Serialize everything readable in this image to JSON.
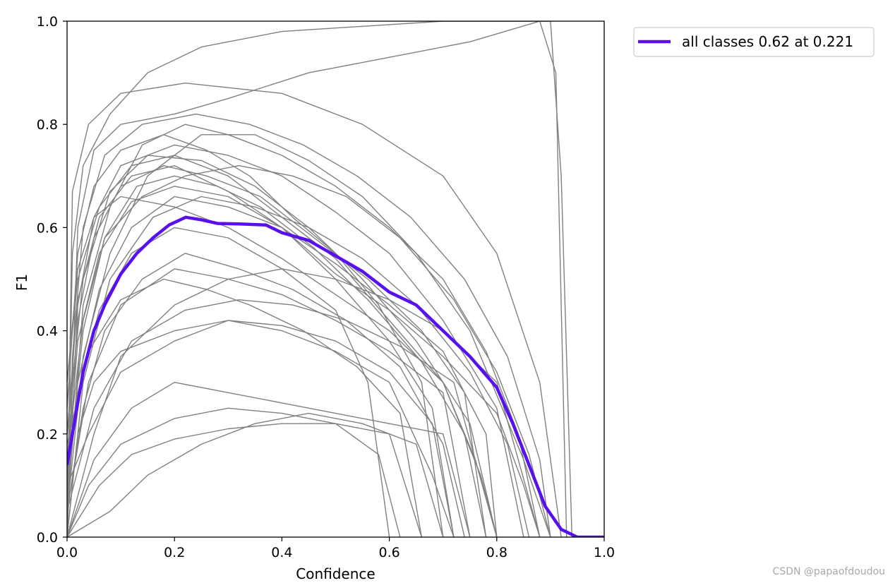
{
  "chart_data": {
    "type": "line",
    "title": "",
    "xlabel": "Confidence",
    "ylabel": "F1",
    "xlim": [
      0,
      1
    ],
    "ylim": [
      0,
      1
    ],
    "xticks": [
      "0.0",
      "0.2",
      "0.4",
      "0.6",
      "0.8",
      "1.0"
    ],
    "yticks": [
      "0.0",
      "0.2",
      "0.4",
      "0.6",
      "0.8",
      "1.0"
    ],
    "grid": false,
    "legend_position": "outside-top-right",
    "class_line_color": "#808080",
    "summary_color": "#5810ee",
    "series": [
      {
        "name": "all classes 0.62 at 0.221",
        "x": [
          0.0,
          0.01,
          0.02,
          0.03,
          0.05,
          0.07,
          0.1,
          0.13,
          0.16,
          0.19,
          0.221,
          0.25,
          0.28,
          0.32,
          0.37,
          0.4,
          0.45,
          0.5,
          0.55,
          0.6,
          0.65,
          0.7,
          0.75,
          0.8,
          0.83,
          0.86,
          0.89,
          0.92,
          0.95,
          0.97,
          1.0
        ],
        "y": [
          0.14,
          0.2,
          0.26,
          0.32,
          0.4,
          0.45,
          0.51,
          0.55,
          0.58,
          0.605,
          0.62,
          0.615,
          0.608,
          0.607,
          0.605,
          0.59,
          0.575,
          0.545,
          0.515,
          0.475,
          0.45,
          0.4,
          0.35,
          0.29,
          0.22,
          0.14,
          0.06,
          0.015,
          0.0,
          0.0,
          0.0
        ]
      }
    ],
    "class_curves": [
      [
        [
          0.0,
          0.0
        ],
        [
          0.02,
          0.45
        ],
        [
          0.05,
          0.62
        ],
        [
          0.1,
          0.72
        ],
        [
          0.2,
          0.76
        ],
        [
          0.3,
          0.74
        ],
        [
          0.4,
          0.7
        ],
        [
          0.5,
          0.63
        ],
        [
          0.6,
          0.55
        ],
        [
          0.7,
          0.42
        ],
        [
          0.8,
          0.25
        ],
        [
          0.85,
          0.0
        ]
      ],
      [
        [
          0.0,
          0.05
        ],
        [
          0.03,
          0.35
        ],
        [
          0.08,
          0.55
        ],
        [
          0.15,
          0.7
        ],
        [
          0.25,
          0.78
        ],
        [
          0.35,
          0.78
        ],
        [
          0.45,
          0.73
        ],
        [
          0.55,
          0.66
        ],
        [
          0.65,
          0.55
        ],
        [
          0.75,
          0.4
        ],
        [
          0.85,
          0.15
        ],
        [
          0.9,
          0.0
        ]
      ],
      [
        [
          0.0,
          0.1
        ],
        [
          0.02,
          0.3
        ],
        [
          0.06,
          0.48
        ],
        [
          0.12,
          0.6
        ],
        [
          0.2,
          0.66
        ],
        [
          0.3,
          0.64
        ],
        [
          0.4,
          0.6
        ],
        [
          0.5,
          0.53
        ],
        [
          0.6,
          0.45
        ],
        [
          0.7,
          0.36
        ],
        [
          0.78,
          0.2
        ],
        [
          0.8,
          0.0
        ]
      ],
      [
        [
          0.0,
          0.0
        ],
        [
          0.01,
          0.67
        ],
        [
          0.04,
          0.8
        ],
        [
          0.1,
          0.86
        ],
        [
          0.22,
          0.88
        ],
        [
          0.4,
          0.86
        ],
        [
          0.55,
          0.8
        ],
        [
          0.7,
          0.7
        ],
        [
          0.8,
          0.55
        ],
        [
          0.88,
          0.3
        ],
        [
          0.92,
          0.0
        ]
      ],
      [
        [
          0.0,
          0.2
        ],
        [
          0.03,
          0.5
        ],
        [
          0.08,
          0.67
        ],
        [
          0.15,
          0.74
        ],
        [
          0.25,
          0.73
        ],
        [
          0.35,
          0.68
        ],
        [
          0.45,
          0.6
        ],
        [
          0.55,
          0.5
        ],
        [
          0.65,
          0.38
        ],
        [
          0.75,
          0.22
        ],
        [
          0.8,
          0.0
        ]
      ],
      [
        [
          0.0,
          0.05
        ],
        [
          0.04,
          0.3
        ],
        [
          0.1,
          0.45
        ],
        [
          0.2,
          0.52
        ],
        [
          0.3,
          0.5
        ],
        [
          0.4,
          0.47
        ],
        [
          0.5,
          0.42
        ],
        [
          0.6,
          0.36
        ],
        [
          0.7,
          0.28
        ],
        [
          0.75,
          0.0
        ]
      ],
      [
        [
          0.0,
          0.15
        ],
        [
          0.02,
          0.42
        ],
        [
          0.05,
          0.58
        ],
        [
          0.1,
          0.68
        ],
        [
          0.18,
          0.72
        ],
        [
          0.26,
          0.7
        ],
        [
          0.36,
          0.66
        ],
        [
          0.46,
          0.58
        ],
        [
          0.56,
          0.5
        ],
        [
          0.66,
          0.4
        ],
        [
          0.74,
          0.28
        ],
        [
          0.78,
          0.0
        ]
      ],
      [
        [
          0.0,
          0.0
        ],
        [
          0.05,
          0.15
        ],
        [
          0.12,
          0.25
        ],
        [
          0.2,
          0.3
        ],
        [
          0.3,
          0.28
        ],
        [
          0.4,
          0.26
        ],
        [
          0.5,
          0.24
        ],
        [
          0.6,
          0.22
        ],
        [
          0.7,
          0.2
        ],
        [
          0.75,
          0.0
        ]
      ],
      [
        [
          0.0,
          0.1
        ],
        [
          0.04,
          0.2
        ],
        [
          0.1,
          0.32
        ],
        [
          0.2,
          0.38
        ],
        [
          0.3,
          0.42
        ],
        [
          0.4,
          0.4
        ],
        [
          0.5,
          0.36
        ],
        [
          0.6,
          0.3
        ],
        [
          0.68,
          0.12
        ],
        [
          0.72,
          0.0
        ]
      ],
      [
        [
          0.0,
          0.0
        ],
        [
          0.01,
          0.55
        ],
        [
          0.03,
          0.72
        ],
        [
          0.08,
          0.82
        ],
        [
          0.15,
          0.9
        ],
        [
          0.25,
          0.95
        ],
        [
          0.4,
          0.98
        ],
        [
          0.55,
          0.99
        ],
        [
          0.7,
          1.0
        ],
        [
          0.85,
          1.0
        ],
        [
          0.9,
          1.0
        ],
        [
          0.92,
          0.7
        ],
        [
          0.94,
          0.0
        ]
      ],
      [
        [
          0.0,
          0.3
        ],
        [
          0.02,
          0.5
        ],
        [
          0.06,
          0.64
        ],
        [
          0.12,
          0.72
        ],
        [
          0.2,
          0.74
        ],
        [
          0.3,
          0.7
        ],
        [
          0.4,
          0.62
        ],
        [
          0.5,
          0.54
        ],
        [
          0.6,
          0.42
        ],
        [
          0.7,
          0.3
        ],
        [
          0.76,
          0.15
        ],
        [
          0.8,
          0.0
        ]
      ],
      [
        [
          0.0,
          0.05
        ],
        [
          0.03,
          0.25
        ],
        [
          0.07,
          0.4
        ],
        [
          0.14,
          0.5
        ],
        [
          0.22,
          0.55
        ],
        [
          0.32,
          0.52
        ],
        [
          0.42,
          0.48
        ],
        [
          0.52,
          0.42
        ],
        [
          0.62,
          0.33
        ],
        [
          0.7,
          0.18
        ],
        [
          0.74,
          0.0
        ]
      ],
      [
        [
          0.0,
          0.0
        ],
        [
          0.06,
          0.1
        ],
        [
          0.12,
          0.16
        ],
        [
          0.2,
          0.19
        ],
        [
          0.3,
          0.21
        ],
        [
          0.4,
          0.22
        ],
        [
          0.5,
          0.22
        ],
        [
          0.6,
          0.2
        ],
        [
          0.66,
          0.0
        ]
      ],
      [
        [
          0.0,
          0.2
        ],
        [
          0.02,
          0.46
        ],
        [
          0.06,
          0.62
        ],
        [
          0.12,
          0.7
        ],
        [
          0.2,
          0.72
        ],
        [
          0.3,
          0.67
        ],
        [
          0.4,
          0.6
        ],
        [
          0.5,
          0.51
        ],
        [
          0.6,
          0.44
        ],
        [
          0.7,
          0.35
        ],
        [
          0.8,
          0.24
        ],
        [
          0.85,
          0.1
        ],
        [
          0.88,
          0.0
        ]
      ],
      [
        [
          0.0,
          0.1
        ],
        [
          0.03,
          0.4
        ],
        [
          0.07,
          0.58
        ],
        [
          0.13,
          0.68
        ],
        [
          0.2,
          0.7
        ],
        [
          0.28,
          0.68
        ],
        [
          0.36,
          0.64
        ],
        [
          0.46,
          0.56
        ],
        [
          0.56,
          0.46
        ],
        [
          0.66,
          0.34
        ],
        [
          0.74,
          0.2
        ],
        [
          0.78,
          0.0
        ]
      ],
      [
        [
          0.0,
          0.0
        ],
        [
          0.05,
          0.2
        ],
        [
          0.1,
          0.35
        ],
        [
          0.2,
          0.45
        ],
        [
          0.3,
          0.5
        ],
        [
          0.4,
          0.52
        ],
        [
          0.5,
          0.5
        ],
        [
          0.6,
          0.46
        ],
        [
          0.7,
          0.4
        ],
        [
          0.8,
          0.3
        ],
        [
          0.88,
          0.0
        ]
      ],
      [
        [
          0.0,
          0.25
        ],
        [
          0.02,
          0.55
        ],
        [
          0.05,
          0.68
        ],
        [
          0.1,
          0.75
        ],
        [
          0.18,
          0.78
        ],
        [
          0.26,
          0.75
        ],
        [
          0.34,
          0.7
        ],
        [
          0.42,
          0.62
        ],
        [
          0.5,
          0.55
        ],
        [
          0.58,
          0.45
        ],
        [
          0.66,
          0.3
        ],
        [
          0.7,
          0.0
        ]
      ],
      [
        [
          0.0,
          0.0
        ],
        [
          0.02,
          0.2
        ],
        [
          0.05,
          0.3
        ],
        [
          0.1,
          0.36
        ],
        [
          0.2,
          0.4
        ],
        [
          0.3,
          0.42
        ],
        [
          0.4,
          0.41
        ],
        [
          0.5,
          0.38
        ],
        [
          0.6,
          0.32
        ],
        [
          0.68,
          0.22
        ],
        [
          0.72,
          0.0
        ]
      ],
      [
        [
          0.0,
          0.05
        ],
        [
          0.03,
          0.45
        ],
        [
          0.08,
          0.64
        ],
        [
          0.14,
          0.76
        ],
        [
          0.22,
          0.8
        ],
        [
          0.3,
          0.78
        ],
        [
          0.4,
          0.74
        ],
        [
          0.5,
          0.68
        ],
        [
          0.6,
          0.6
        ],
        [
          0.7,
          0.5
        ],
        [
          0.78,
          0.36
        ],
        [
          0.84,
          0.2
        ],
        [
          0.88,
          0.0
        ]
      ],
      [
        [
          0.0,
          0.0
        ],
        [
          0.04,
          0.1
        ],
        [
          0.1,
          0.18
        ],
        [
          0.2,
          0.23
        ],
        [
          0.3,
          0.25
        ],
        [
          0.4,
          0.24
        ],
        [
          0.5,
          0.22
        ],
        [
          0.58,
          0.16
        ],
        [
          0.62,
          0.0
        ]
      ],
      [
        [
          0.0,
          0.12
        ],
        [
          0.02,
          0.38
        ],
        [
          0.06,
          0.55
        ],
        [
          0.12,
          0.65
        ],
        [
          0.2,
          0.68
        ],
        [
          0.3,
          0.66
        ],
        [
          0.4,
          0.6
        ],
        [
          0.5,
          0.5
        ],
        [
          0.6,
          0.38
        ],
        [
          0.68,
          0.25
        ],
        [
          0.72,
          0.0
        ]
      ],
      [
        [
          0.0,
          0.0
        ],
        [
          0.01,
          0.35
        ],
        [
          0.03,
          0.6
        ],
        [
          0.07,
          0.74
        ],
        [
          0.14,
          0.8
        ],
        [
          0.24,
          0.82
        ],
        [
          0.34,
          0.8
        ],
        [
          0.44,
          0.76
        ],
        [
          0.54,
          0.7
        ],
        [
          0.64,
          0.62
        ],
        [
          0.74,
          0.5
        ],
        [
          0.82,
          0.35
        ],
        [
          0.88,
          0.15
        ],
        [
          0.9,
          0.0
        ]
      ],
      [
        [
          0.0,
          0.18
        ],
        [
          0.04,
          0.36
        ],
        [
          0.1,
          0.46
        ],
        [
          0.18,
          0.5
        ],
        [
          0.26,
          0.48
        ],
        [
          0.34,
          0.45
        ],
        [
          0.44,
          0.4
        ],
        [
          0.54,
          0.33
        ],
        [
          0.62,
          0.24
        ],
        [
          0.66,
          0.0
        ]
      ],
      [
        [
          0.0,
          0.0
        ],
        [
          0.03,
          0.3
        ],
        [
          0.08,
          0.5
        ],
        [
          0.16,
          0.62
        ],
        [
          0.25,
          0.66
        ],
        [
          0.35,
          0.64
        ],
        [
          0.45,
          0.6
        ],
        [
          0.55,
          0.54
        ],
        [
          0.65,
          0.45
        ],
        [
          0.75,
          0.32
        ],
        [
          0.82,
          0.18
        ],
        [
          0.86,
          0.0
        ]
      ],
      [
        [
          0.0,
          0.08
        ],
        [
          0.02,
          0.28
        ],
        [
          0.06,
          0.44
        ],
        [
          0.12,
          0.55
        ],
        [
          0.2,
          0.6
        ],
        [
          0.3,
          0.58
        ],
        [
          0.4,
          0.52
        ],
        [
          0.5,
          0.44
        ],
        [
          0.56,
          0.3
        ],
        [
          0.6,
          0.0
        ]
      ],
      [
        [
          0.0,
          0.0
        ],
        [
          0.02,
          0.6
        ],
        [
          0.05,
          0.75
        ],
        [
          0.1,
          0.8
        ],
        [
          0.2,
          0.82
        ],
        [
          0.3,
          0.85
        ],
        [
          0.45,
          0.9
        ],
        [
          0.6,
          0.93
        ],
        [
          0.75,
          0.96
        ],
        [
          0.88,
          1.0
        ],
        [
          0.91,
          0.9
        ],
        [
          0.93,
          0.0
        ]
      ],
      [
        [
          0.0,
          0.3
        ],
        [
          0.02,
          0.52
        ],
        [
          0.05,
          0.62
        ],
        [
          0.1,
          0.66
        ],
        [
          0.2,
          0.64
        ],
        [
          0.3,
          0.6
        ],
        [
          0.4,
          0.54
        ],
        [
          0.5,
          0.47
        ],
        [
          0.6,
          0.4
        ],
        [
          0.7,
          0.3
        ],
        [
          0.77,
          0.12
        ],
        [
          0.8,
          0.0
        ]
      ],
      [
        [
          0.0,
          0.0
        ],
        [
          0.08,
          0.05
        ],
        [
          0.15,
          0.12
        ],
        [
          0.25,
          0.18
        ],
        [
          0.35,
          0.22
        ],
        [
          0.45,
          0.24
        ],
        [
          0.55,
          0.22
        ],
        [
          0.65,
          0.18
        ],
        [
          0.7,
          0.0
        ]
      ],
      [
        [
          0.0,
          0.15
        ],
        [
          0.03,
          0.42
        ],
        [
          0.07,
          0.58
        ],
        [
          0.14,
          0.66
        ],
        [
          0.22,
          0.7
        ],
        [
          0.32,
          0.72
        ],
        [
          0.42,
          0.7
        ],
        [
          0.52,
          0.66
        ],
        [
          0.62,
          0.58
        ],
        [
          0.72,
          0.46
        ],
        [
          0.8,
          0.32
        ],
        [
          0.86,
          0.16
        ],
        [
          0.9,
          0.0
        ]
      ],
      [
        [
          0.0,
          0.05
        ],
        [
          0.05,
          0.25
        ],
        [
          0.12,
          0.38
        ],
        [
          0.22,
          0.44
        ],
        [
          0.32,
          0.46
        ],
        [
          0.42,
          0.45
        ],
        [
          0.52,
          0.42
        ],
        [
          0.62,
          0.37
        ],
        [
          0.72,
          0.3
        ],
        [
          0.8,
          0.0
        ]
      ]
    ]
  },
  "watermark": "CSDN @papaofdoudou"
}
